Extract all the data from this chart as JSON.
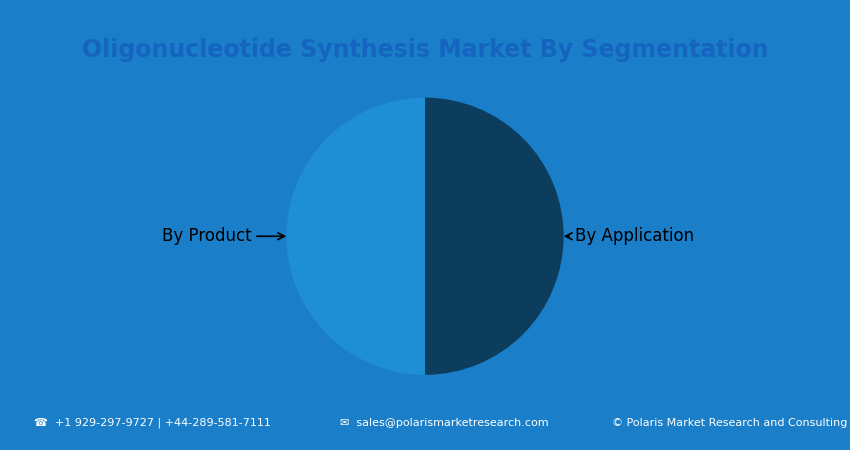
{
  "title": "Oligonucleotide Synthesis Market By Segmentation",
  "title_color": "#1565c0",
  "title_fontsize": 17,
  "title_fontweight": "bold",
  "background_blue": "#1a7ec8",
  "background_inner": "#ffffff",
  "slices": [
    50,
    50
  ],
  "slice_colors": [
    "#0d3d5c",
    "#1e8fd5"
  ],
  "labels": [
    "By Product",
    "By Application"
  ],
  "label_fontsize": 12,
  "footer_text1": "☎  +1 929-297-9727 | +44-289-581-7111",
  "footer_text2": "✉  sales@polarismarketresearch.com",
  "footer_text3": "© Polaris Market Research and Consulting LLP",
  "footer_fontsize": 8,
  "footer_color": "#ffffff"
}
